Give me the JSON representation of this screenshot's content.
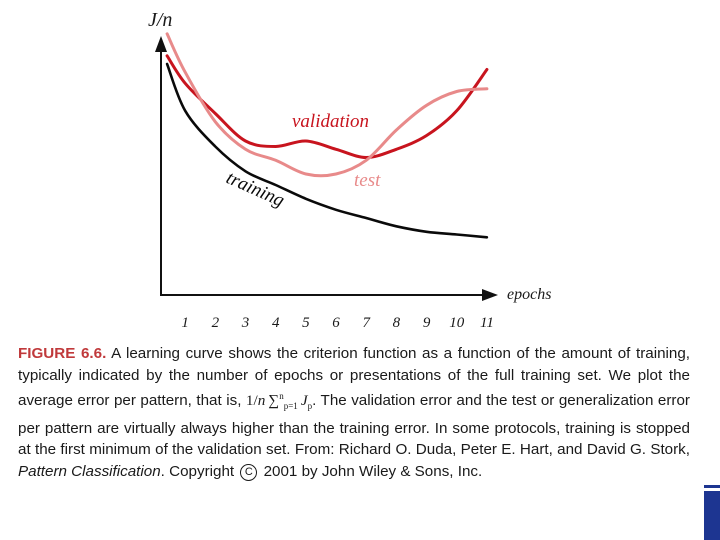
{
  "chart_data": {
    "type": "line",
    "ylabel": "J/n",
    "xlabel": "epochs",
    "x_ticks": [
      "1",
      "2",
      "3",
      "4",
      "5",
      "6",
      "7",
      "8",
      "9",
      "10",
      "11"
    ],
    "xlim": [
      0,
      11.5
    ],
    "ylim": [
      0,
      1
    ],
    "grid": false,
    "series": [
      {
        "name": "validation",
        "color": "#c8141e",
        "width": 3,
        "x": [
          0.4,
          1,
          2,
          3,
          4,
          5,
          6,
          7,
          8,
          9,
          10,
          11
        ],
        "y": [
          0.87,
          0.77,
          0.66,
          0.56,
          0.54,
          0.56,
          0.53,
          0.5,
          0.53,
          0.58,
          0.67,
          0.82
        ]
      },
      {
        "name": "test",
        "color": "#e88a8a",
        "width": 3,
        "x": [
          0.4,
          1,
          2,
          3,
          4,
          5,
          6,
          7,
          8,
          9,
          10,
          11
        ],
        "y": [
          0.95,
          0.81,
          0.63,
          0.53,
          0.49,
          0.44,
          0.44,
          0.49,
          0.6,
          0.69,
          0.74,
          0.75
        ]
      },
      {
        "name": "training",
        "color": "#0a0a0a",
        "width": 2.6,
        "x": [
          0.4,
          1,
          2,
          3,
          4,
          5,
          6,
          7,
          8,
          9,
          10,
          11
        ],
        "y": [
          0.84,
          0.67,
          0.54,
          0.45,
          0.4,
          0.35,
          0.31,
          0.28,
          0.25,
          0.23,
          0.22,
          0.21
        ]
      }
    ],
    "annotations": [
      {
        "text": "validation",
        "color": "#c8141e"
      },
      {
        "text": "test",
        "color": "#e88a8a"
      },
      {
        "text": "training",
        "color": "#0a0a0a"
      }
    ]
  },
  "caption": {
    "figure_label": "FIGURE 6.6.",
    "part1": "A learning curve shows the criterion function as a function of the amount of training, typically indicated by the number of epochs or presentations of the full training set. We plot the average error per pattern, that is, ",
    "formula": {
      "prefix": "1/",
      "n": "n",
      "sigma": "∑",
      "sup": "n",
      "sub": "p=1",
      "j": "J",
      "j_sub": "p"
    },
    "part2": ". The validation error and the test or generalization error per pattern are virtually always higher than the training error. In some protocols, training is stopped at the first minimum of the validation set. From: Richard O. Duda, Peter E. Hart, and David G. Stork, ",
    "book_title": "Pattern Classification",
    "part3": ". Copyright ",
    "copyright_symbol": "C",
    "part4": " 2001 by John Wiley & Sons, Inc."
  },
  "decor": {
    "slide_bar_color": "#1d3591"
  }
}
